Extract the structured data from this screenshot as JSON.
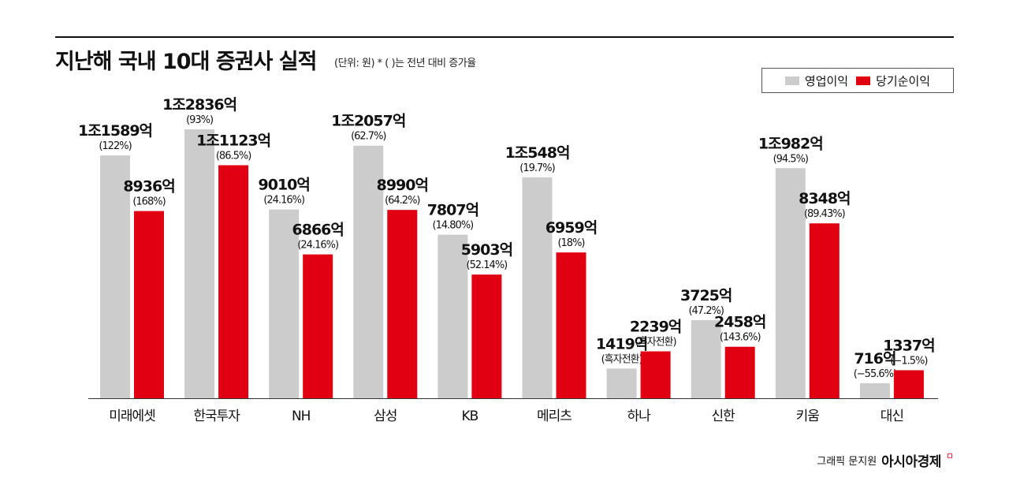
{
  "header": {
    "title": "지난해 국내 10대 증권사 실적",
    "subtitle": "(단위: 원) * ( )는 전년 대비 증가율"
  },
  "legend": {
    "operating": "영업이익",
    "net": "당기순이익"
  },
  "colors": {
    "operating": "#cccccc",
    "net": "#e00012",
    "axis": "#333333"
  },
  "footer": {
    "credit": "그래픽 문지원",
    "brand": "아시아경제",
    "brand_mark": "ㅁ"
  },
  "chart_data": {
    "type": "bar",
    "title": "지난해 국내 10대 증권사 실적",
    "unit": "억 원",
    "categories": [
      "미래에셋",
      "한국투자",
      "NH",
      "삼성",
      "KB",
      "메리츠",
      "하나",
      "신한",
      "키움",
      "대신"
    ],
    "series": [
      {
        "name": "영업이익",
        "values": [
          11589,
          12836,
          9010,
          12057,
          7807,
          10548,
          1419,
          3725,
          10982,
          716
        ],
        "labels": [
          "1조1589억",
          "1조2836억",
          "9010억",
          "1조2057억",
          "7807억",
          "1조548억",
          "1419억",
          "3725억",
          "1조982억",
          "716억"
        ],
        "changes": [
          "(122%)",
          "(93%)",
          "(24.16%)",
          "(62.7%)",
          "(14.80%)",
          "(19.7%)",
          "(흑자전환)",
          "(47.2%)",
          "(94.5%)",
          "(−55.6%)"
        ]
      },
      {
        "name": "당기순이익",
        "values": [
          8936,
          11123,
          6866,
          8990,
          5903,
          6959,
          2239,
          2458,
          8348,
          1337
        ],
        "labels": [
          "8936억",
          "1조1123억",
          "6866억",
          "8990억",
          "5903억",
          "6959억",
          "2239억",
          "2458억",
          "8348억",
          "1337억"
        ],
        "changes": [
          "(168%)",
          "(86.5%)",
          "(24.16%)",
          "(64.2%)",
          "(52.14%)",
          "(18%)",
          "(흑자전환)",
          "(143.6%)",
          "(89.43%)",
          "(−1.5%)"
        ]
      }
    ]
  }
}
